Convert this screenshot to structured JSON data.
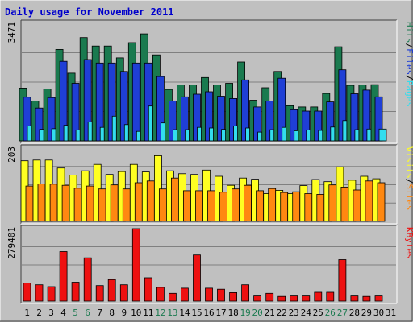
{
  "colors": {
    "background": "#c0c0c0",
    "frame_dark": "#404040",
    "frame_light": "#ffffff",
    "plot_bg": "#c0c0c0",
    "grid": "#808080",
    "title": "#0000cc",
    "hits": "#1a7a4f",
    "files": "#1f3fd6",
    "pages": "#33ddee",
    "visits": "#ffff22",
    "sites": "#ff8811",
    "kbytes": "#ee1111",
    "weekend_label": "#1a7a4f",
    "weekday_label": "#000000"
  },
  "chart_data": {
    "type": "bar",
    "title": "Daily usage for November 2011",
    "categories": [
      "1",
      "2",
      "3",
      "4",
      "5",
      "6",
      "7",
      "8",
      "9",
      "10",
      "11",
      "12",
      "13",
      "14",
      "15",
      "16",
      "17",
      "18",
      "19",
      "20",
      "21",
      "22",
      "23",
      "24",
      "25",
      "26",
      "27",
      "28",
      "29",
      "30",
      "31"
    ],
    "weekend_days": [
      "5",
      "6",
      "12",
      "13",
      "19",
      "20",
      "26",
      "27"
    ],
    "panels": [
      {
        "name": "traffic",
        "max_label": "3471",
        "ylim": [
          0,
          3471
        ],
        "legend": [
          "Pages",
          "Files",
          "Hits"
        ],
        "series": [
          {
            "name": "Hits",
            "color_key": "hits",
            "values": [
              1560,
              1180,
              1530,
              2700,
              2000,
              3050,
              2800,
              2800,
              2450,
              2900,
              3160,
              2540,
              1520,
              1650,
              1650,
              1870,
              1650,
              1700,
              2330,
              1200,
              1570,
              2050,
              1040,
              1000,
              1000,
              1400,
              2780,
              1640,
              1650,
              1660,
              0
            ]
          },
          {
            "name": "Files",
            "color_key": "files",
            "values": [
              1290,
              970,
              1280,
              2350,
              1700,
              2400,
              2300,
              2300,
              2050,
              2300,
              2300,
              1900,
              1180,
              1300,
              1380,
              1450,
              1320,
              1250,
              1800,
              1000,
              1180,
              1850,
              920,
              880,
              880,
              1150,
              2100,
              1390,
              1500,
              1300,
              0
            ]
          },
          {
            "name": "Pages",
            "color_key": "pages",
            "values": [
              440,
              340,
              360,
              460,
              320,
              560,
              400,
              730,
              480,
              280,
              1030,
              530,
              330,
              330,
              400,
              380,
              340,
              440,
              380,
              260,
              330,
              400,
              300,
              320,
              310,
              410,
              600,
              330,
              350,
              350,
              0
            ]
          }
        ]
      },
      {
        "name": "visitors",
        "max_label": "203",
        "ylim": [
          0,
          203
        ],
        "legend": [
          "Sites",
          "Visits"
        ],
        "series": [
          {
            "name": "Visits",
            "color_key": "visits",
            "values": [
              168,
              170,
              170,
              148,
              128,
              140,
              158,
              130,
              138,
              158,
              137,
              182,
              140,
              132,
              130,
              142,
              125,
              100,
              120,
              117,
              77,
              86,
              77,
              99,
              116,
              110,
              151,
              114,
              125,
              118,
              0
            ]
          },
          {
            "name": "Sites",
            "color_key": "sites",
            "values": [
              98,
              104,
              103,
              100,
              92,
              98,
              90,
              101,
              90,
              107,
              112,
              90,
              120,
              85,
              85,
              85,
              81,
              90,
              100,
              85,
              91,
              80,
              82,
              77,
              75,
              101,
              95,
              87,
              112,
              107,
              0
            ]
          }
        ]
      },
      {
        "name": "kbytes",
        "max_label": "279401",
        "ylim": [
          0,
          279401
        ],
        "legend": [
          "KBytes"
        ],
        "series": [
          {
            "name": "KBytes",
            "color_key": "kbytes",
            "values": [
              70000,
              63000,
              56000,
              191000,
              73000,
              167000,
              60000,
              83000,
              63000,
              279401,
              90000,
              53000,
              30000,
              50000,
              178000,
              50000,
              46000,
              33000,
              63000,
              20000,
              30000,
              18000,
              20000,
              20000,
              34000,
              34000,
              160000,
              20000,
              18000,
              20000,
              0
            ]
          }
        ]
      }
    ]
  }
}
